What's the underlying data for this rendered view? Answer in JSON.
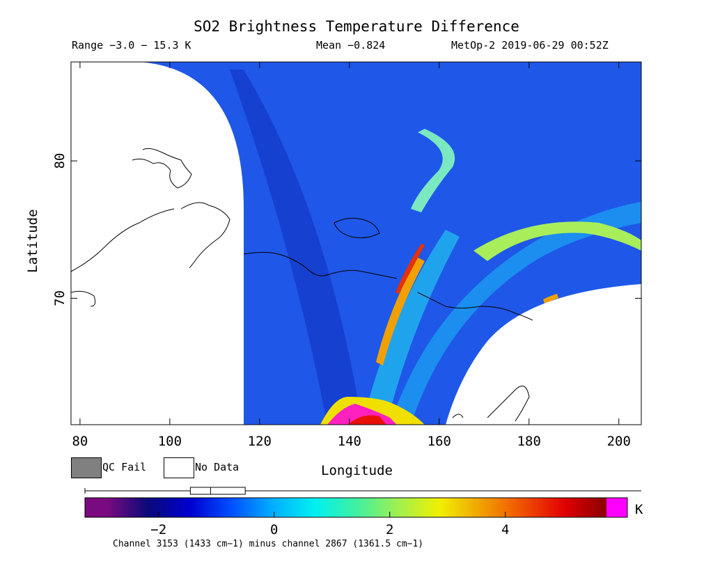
{
  "header": {
    "title": "SO2 Brightness Temperature Difference",
    "range": "Range −3.0 − 15.3 K",
    "mean": "Mean −0.824",
    "satellite_time": "MetOp-2 2019-06-29 00:52Z"
  },
  "map": {
    "xlabel": "Longitude",
    "ylabel": "Latitude",
    "lon_range": [
      78,
      205
    ],
    "lat_range": [
      60.8,
      87.2
    ],
    "x_ticks": [
      80,
      100,
      120,
      140,
      160,
      180,
      200
    ],
    "y_ticks": [
      70,
      80
    ],
    "colors": {
      "background_field": "#1f57e8",
      "no_data": "#ffffff",
      "coast": "#000000"
    }
  },
  "legend": {
    "qc_fail": "QC Fail",
    "no_data": "No Data",
    "qc_fail_color": "#808080",
    "no_data_color": "#ffffff"
  },
  "colorbar": {
    "unit": "K",
    "range": [
      -2.9,
      5.75
    ],
    "ticks": [
      -2,
      0,
      2,
      4
    ],
    "stops": [
      "#7a0a7f",
      "#0a0a7a",
      "#0000d0",
      "#0050ff",
      "#00b0ff",
      "#00f0f0",
      "#40f0a0",
      "#a0f050",
      "#f0f000",
      "#f0a000",
      "#f05000",
      "#e00000",
      "#8a0000"
    ],
    "over_color": "#ff00ff",
    "under_color": "#7a0a7f",
    "distribution_box": {
      "min": -2.9,
      "q1": -1.45,
      "median": -1.1,
      "q3": -0.5
    }
  },
  "footnote": "Channel 3153 (1433 cm−1) minus channel 2867 (1361.5 cm−1)"
}
